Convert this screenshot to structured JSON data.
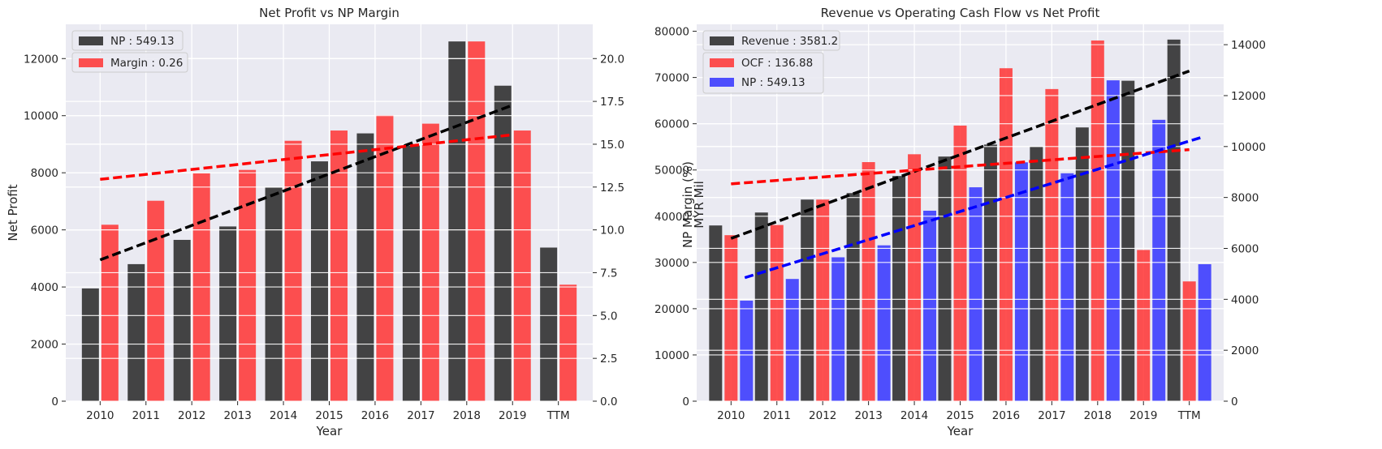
{
  "colors": {
    "background": "#eaeaf2",
    "grid": "#ffffff",
    "black": "#262626",
    "red": "#ff3333",
    "blue": "#3333ff",
    "trend_black": "#000000",
    "trend_red": "#ff0000",
    "trend_blue": "#0000ff"
  },
  "chart_data": [
    {
      "type": "bar",
      "title": "Net Profit vs NP Margin",
      "xlabel": "Year",
      "ylabel": "Net Profit",
      "ylabel_right": "NP Margin (%)",
      "categories": [
        "2010",
        "2011",
        "2012",
        "2013",
        "2014",
        "2015",
        "2016",
        "2017",
        "2018",
        "2019",
        "TTM"
      ],
      "ylim": [
        0,
        13200
      ],
      "ylim_right": [
        0,
        22.0
      ],
      "yticks": [
        0,
        2000,
        4000,
        6000,
        8000,
        10000,
        12000
      ],
      "yticks_right": [
        "0.0",
        "2.5",
        "5.0",
        "7.5",
        "10.0",
        "12.5",
        "15.0",
        "17.5",
        "20.0"
      ],
      "legend_placement": "top-left",
      "grid": true,
      "series": [
        {
          "name": "NP : 549.13",
          "axis": "left",
          "color": "black",
          "values": [
            3950,
            4800,
            5650,
            6120,
            7480,
            8400,
            9380,
            8950,
            12600,
            11050,
            5380
          ]
        },
        {
          "name": "Margin : 0.26",
          "axis": "right",
          "color": "red",
          "values": [
            10.3,
            11.7,
            13.3,
            13.5,
            15.2,
            15.8,
            16.7,
            16.2,
            21.0,
            15.8,
            6.8
          ]
        }
      ],
      "trendlines": [
        {
          "axis": "left",
          "color": "trend_black",
          "start": [
            0,
            4950
          ],
          "end": [
            9,
            10370
          ]
        },
        {
          "axis": "right",
          "color": "trend_red",
          "start": [
            0,
            12.95
          ],
          "end": [
            9,
            15.55
          ]
        }
      ]
    },
    {
      "type": "bar",
      "title": "Revenue vs Operating Cash Flow vs Net Profit",
      "xlabel": "Year",
      "ylabel": "MYR Mil",
      "categories": [
        "2010",
        "2011",
        "2012",
        "2013",
        "2014",
        "2015",
        "2016",
        "2017",
        "2018",
        "2019",
        "TTM"
      ],
      "ylim": [
        0,
        81500
      ],
      "ylim_right": [
        0,
        14800
      ],
      "yticks": [
        0,
        10000,
        20000,
        30000,
        40000,
        50000,
        60000,
        70000,
        80000
      ],
      "yticks_right": [
        0,
        2000,
        4000,
        6000,
        8000,
        10000,
        12000,
        14000
      ],
      "legend_placement": "top-left",
      "grid": true,
      "series": [
        {
          "name": "Revenue : 3581.2",
          "axis": "left",
          "color": "black",
          "values": [
            38000,
            40800,
            43600,
            45000,
            48700,
            52900,
            55500,
            55000,
            59200,
            69300,
            78200
          ]
        },
        {
          "name": "OCF : 136.88",
          "axis": "left",
          "color": "red",
          "values": [
            35900,
            38100,
            43600,
            51700,
            53400,
            59600,
            72000,
            67500,
            78000,
            32700,
            25900
          ]
        },
        {
          "name": "NP : 549.13",
          "axis": "right",
          "color": "blue",
          "values": [
            3950,
            4800,
            5650,
            6120,
            7480,
            8400,
            9380,
            8950,
            12600,
            11050,
            5380
          ]
        }
      ],
      "trendlines": [
        {
          "axis": "left",
          "color": "trend_black",
          "start": [
            0,
            35200
          ],
          "end": [
            10,
            71400
          ]
        },
        {
          "axis": "left",
          "color": "trend_red",
          "start": [
            0,
            47000
          ],
          "end": [
            10,
            54400
          ]
        },
        {
          "axis": "right",
          "color": "trend_blue",
          "start": [
            0.3,
            4850
          ],
          "end": [
            10.3,
            10380
          ]
        }
      ]
    }
  ]
}
